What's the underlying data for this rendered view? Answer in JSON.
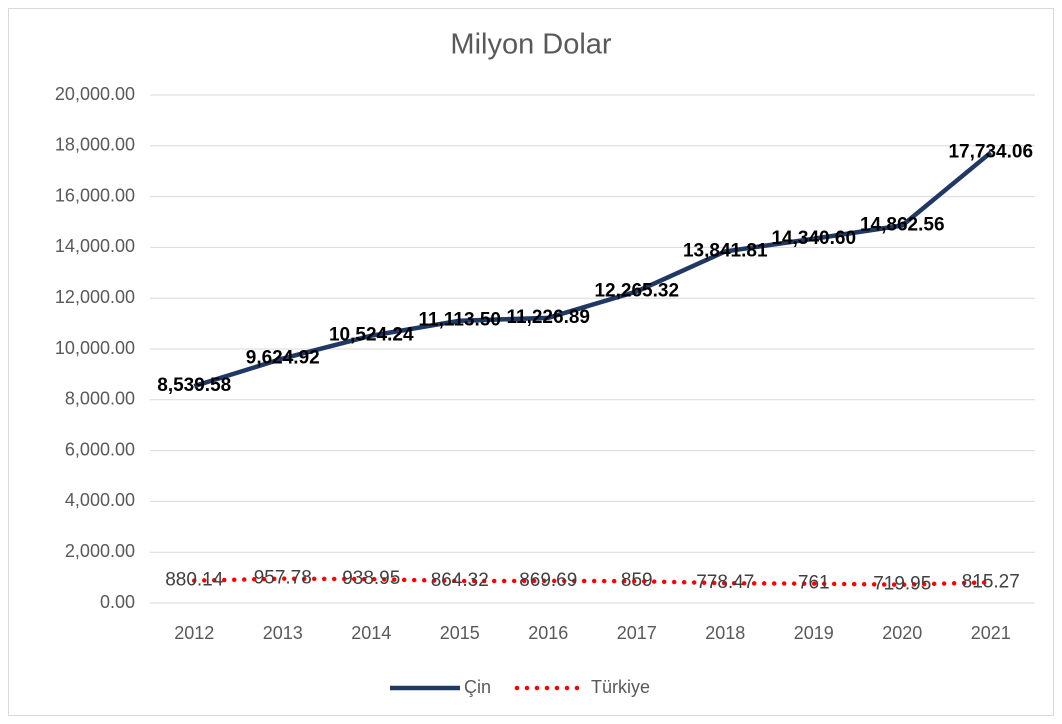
{
  "chart_data": {
    "type": "line",
    "title": "Milyon Dolar",
    "categories": [
      "2012",
      "2013",
      "2014",
      "2015",
      "2016",
      "2017",
      "2018",
      "2019",
      "2020",
      "2021"
    ],
    "series": [
      {
        "name": "Çin",
        "color": "#203864",
        "linestyle": "solid",
        "values": [
          8539.58,
          9624.92,
          10524.24,
          11113.5,
          11226.89,
          12265.32,
          13841.81,
          14340.6,
          14862.56,
          17734.06
        ],
        "value_labels": [
          "8,539.58",
          "9,624.92",
          "10,524.24",
          "11,113.50",
          "11,226.89",
          "12,265.32",
          "13,841.81",
          "14,340.60",
          "14,862.56",
          "17,734.06"
        ]
      },
      {
        "name": "Türkiye",
        "color": "#ff0000",
        "linestyle": "dotted",
        "values": [
          880.14,
          957.78,
          938.95,
          864.32,
          869.69,
          859,
          778.47,
          761,
          719.95,
          815.27
        ]
      }
    ],
    "ylim": [
      0,
      20000
    ],
    "yticks": [
      {
        "value": 0,
        "label": "0.00"
      },
      {
        "value": 2000,
        "label": "2,000.00"
      },
      {
        "value": 4000,
        "label": "4,000.00"
      },
      {
        "value": 6000,
        "label": "6,000.00"
      },
      {
        "value": 8000,
        "label": "8,000.00"
      },
      {
        "value": 10000,
        "label": "10,000.00"
      },
      {
        "value": 12000,
        "label": "12,000.00"
      },
      {
        "value": 14000,
        "label": "14,000.00"
      },
      {
        "value": 16000,
        "label": "16,000.00"
      },
      {
        "value": 18000,
        "label": "18,000.00"
      },
      {
        "value": 20000,
        "label": "20,000.00"
      }
    ],
    "grid": true,
    "legend": "bottom"
  }
}
